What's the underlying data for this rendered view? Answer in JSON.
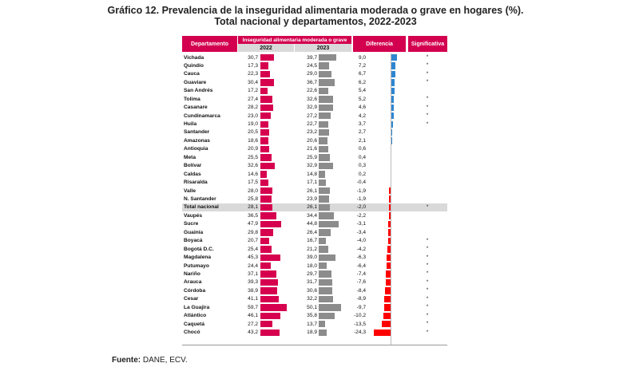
{
  "title_line1": "Gráfico 12. Prevalencia de la inseguridad alimentaria moderada o grave en hogares (%).",
  "title_line2": "Total nacional y departamentos, 2022-2023",
  "headers": {
    "departamento": "Departamento",
    "group": "Inseguridad alimentaria moderada o grave",
    "y2022": "2022",
    "y2023": "2023",
    "diferencia": "Diferencia",
    "significativa": "Significativa"
  },
  "source_label": "Fuente:",
  "source_text": " DANE, ECV.",
  "colors": {
    "header": "#d3004f",
    "bar2022": "#d6004f",
    "bar2023": "#8c8c8c",
    "diff_pos": "#2e86d0",
    "diff_neg": "#ff0000"
  },
  "chart_data": {
    "type": "table",
    "columns": [
      "Departamento",
      "2022",
      "2023",
      "Diferencia",
      "Significativa"
    ],
    "rows": [
      {
        "name": "Vichada",
        "v2022": "30,7",
        "v2023": "39,7",
        "diff": "9,0",
        "sig": "*"
      },
      {
        "name": "Quindío",
        "v2022": "17,3",
        "v2023": "24,5",
        "diff": "7,2",
        "sig": "*"
      },
      {
        "name": "Cauca",
        "v2022": "22,3",
        "v2023": "29,0",
        "diff": "6,7",
        "sig": "*"
      },
      {
        "name": "Guaviare",
        "v2022": "30,4",
        "v2023": "36,7",
        "diff": "6,2",
        "sig": "*"
      },
      {
        "name": "San Andrés",
        "v2022": "17,2",
        "v2023": "22,6",
        "diff": "5,4",
        "sig": ""
      },
      {
        "name": "Tolima",
        "v2022": "27,4",
        "v2023": "32,6",
        "diff": "5,2",
        "sig": "*"
      },
      {
        "name": "Casanare",
        "v2022": "28,2",
        "v2023": "32,9",
        "diff": "4,6",
        "sig": "*"
      },
      {
        "name": "Cundinamarca",
        "v2022": "23,0",
        "v2023": "27,2",
        "diff": "4,2",
        "sig": "*"
      },
      {
        "name": "Huila",
        "v2022": "19,0",
        "v2023": "22,7",
        "diff": "3,7",
        "sig": "*"
      },
      {
        "name": "Santander",
        "v2022": "20,5",
        "v2023": "23,2",
        "diff": "2,7",
        "sig": ""
      },
      {
        "name": "Amazonas",
        "v2022": "18,6",
        "v2023": "20,6",
        "diff": "2,1",
        "sig": ""
      },
      {
        "name": "Antioquia",
        "v2022": "20,9",
        "v2023": "21,6",
        "diff": "0,6",
        "sig": ""
      },
      {
        "name": "Meta",
        "v2022": "25,5",
        "v2023": "25,9",
        "diff": "0,4",
        "sig": ""
      },
      {
        "name": "Bolívar",
        "v2022": "32,6",
        "v2023": "32,9",
        "diff": "0,3",
        "sig": ""
      },
      {
        "name": "Caldas",
        "v2022": "14,6",
        "v2023": "14,8",
        "diff": "0,2",
        "sig": ""
      },
      {
        "name": "Risaralda",
        "v2022": "17,5",
        "v2023": "17,1",
        "diff": "-0,4",
        "sig": ""
      },
      {
        "name": "Valle",
        "v2022": "28,0",
        "v2023": "26,1",
        "diff": "-1,9",
        "sig": ""
      },
      {
        "name": "N. Santander",
        "v2022": "25,8",
        "v2023": "23,9",
        "diff": "-1,9",
        "sig": ""
      },
      {
        "name": "Total nacional",
        "v2022": "28,1",
        "v2023": "26,1",
        "diff": "-2,0",
        "sig": "*",
        "total": true
      },
      {
        "name": "Vaupés",
        "v2022": "36,5",
        "v2023": "34,4",
        "diff": "-2,2",
        "sig": ""
      },
      {
        "name": "Sucre",
        "v2022": "47,9",
        "v2023": "44,8",
        "diff": "-3,1",
        "sig": ""
      },
      {
        "name": "Guainía",
        "v2022": "29,8",
        "v2023": "26,4",
        "diff": "-3,4",
        "sig": ""
      },
      {
        "name": "Boyacá",
        "v2022": "20,7",
        "v2023": "16,7",
        "diff": "-4,0",
        "sig": "*"
      },
      {
        "name": "Bogotá D.C.",
        "v2022": "25,4",
        "v2023": "21,2",
        "diff": "-4,2",
        "sig": "*"
      },
      {
        "name": "Magdalena",
        "v2022": "45,3",
        "v2023": "39,0",
        "diff": "-6,3",
        "sig": "*"
      },
      {
        "name": "Putumayo",
        "v2022": "24,4",
        "v2023": "18,0",
        "diff": "-6,4",
        "sig": "*"
      },
      {
        "name": "Nariño",
        "v2022": "37,1",
        "v2023": "29,7",
        "diff": "-7,4",
        "sig": "*"
      },
      {
        "name": "Arauca",
        "v2022": "39,3",
        "v2023": "31,7",
        "diff": "-7,6",
        "sig": "*"
      },
      {
        "name": "Córdoba",
        "v2022": "38,9",
        "v2023": "30,6",
        "diff": "-8,4",
        "sig": "*"
      },
      {
        "name": "Cesar",
        "v2022": "41,1",
        "v2023": "32,2",
        "diff": "-8,9",
        "sig": "*"
      },
      {
        "name": "La Guajira",
        "v2022": "59,7",
        "v2023": "50,1",
        "diff": "-9,7",
        "sig": "*"
      },
      {
        "name": "Atlántico",
        "v2022": "46,1",
        "v2023": "35,8",
        "diff": "-10,2",
        "sig": "*"
      },
      {
        "name": "Caquetá",
        "v2022": "27,2",
        "v2023": "13,7",
        "diff": "-13,5",
        "sig": "*"
      },
      {
        "name": "Chocó",
        "v2022": "43,2",
        "v2023": "18,9",
        "diff": "-24,3",
        "sig": "*"
      }
    ]
  }
}
